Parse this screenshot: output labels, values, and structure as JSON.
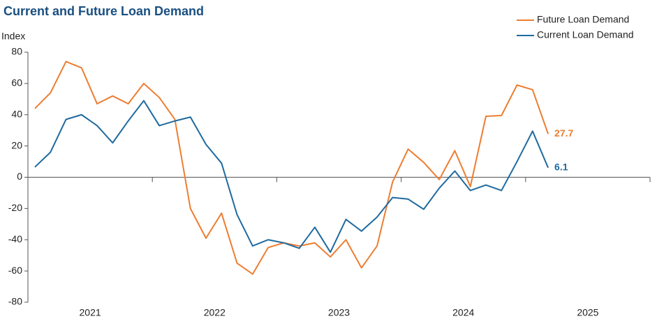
{
  "chart_data": {
    "type": "line",
    "title": "Current and Future Loan Demand",
    "y_label": "Index",
    "x": [
      2021.056,
      2021.181,
      2021.306,
      2021.431,
      2021.556,
      2021.681,
      2021.806,
      2021.931,
      2022.056,
      2022.181,
      2022.306,
      2022.431,
      2022.556,
      2022.681,
      2022.806,
      2022.931,
      2023.056,
      2023.181,
      2023.306,
      2023.431,
      2023.556,
      2023.681,
      2023.806,
      2023.931,
      2024.056,
      2024.181,
      2024.306,
      2024.431,
      2024.556,
      2024.681,
      2024.806,
      2024.931,
      2025.056,
      2025.181
    ],
    "series": [
      {
        "name": "Future Loan Demand",
        "color": "#ed7d31",
        "values": [
          44,
          54,
          74,
          70,
          47,
          52,
          47,
          60,
          51,
          37,
          -20,
          -39,
          -23,
          -55,
          -62,
          -45,
          -42,
          -44,
          -42,
          -51,
          -40,
          -58,
          -44,
          -3,
          18,
          9.5,
          -1.5,
          17,
          -6,
          39,
          39.5,
          59,
          56,
          27.7
        ]
      },
      {
        "name": "Current Loan Demand",
        "color": "#1f6a9e",
        "values": [
          6.5,
          16,
          37,
          40,
          33,
          22,
          36,
          49,
          33,
          36,
          38.5,
          21,
          9,
          -24,
          -44,
          -40,
          -42,
          -45.5,
          -32,
          -48,
          -27,
          -34.5,
          -25.5,
          -13,
          -14,
          -20.5,
          -7,
          4,
          -8.5,
          -5,
          -8.5,
          10,
          29.5,
          6.1
        ]
      }
    ],
    "label_last": true,
    "xlim": [
      2021,
      2026
    ],
    "xticks": [
      2021,
      2022,
      2023,
      2024,
      2025,
      2026
    ],
    "xlabels": [
      {
        "value": 2021.5,
        "label": "2021"
      },
      {
        "value": 2022.5,
        "label": "2022"
      },
      {
        "value": 2023.5,
        "label": "2023"
      },
      {
        "value": 2024.5,
        "label": "2024"
      },
      {
        "value": 2025.5,
        "label": "2025"
      }
    ],
    "ylim": [
      -80,
      80
    ],
    "yticks": [
      -80,
      -60,
      -40,
      -20,
      0,
      20,
      40,
      60,
      80
    ],
    "legend": "top-right"
  }
}
